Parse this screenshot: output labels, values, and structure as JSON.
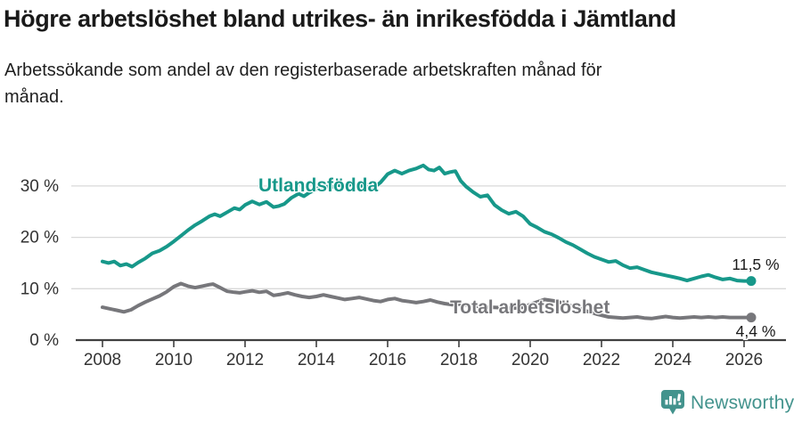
{
  "header": {
    "title": "Högre arbetslöshet bland utrikes- än inrikesfödda i Jämtland",
    "subtitle_line1": "Arbetssökande som andel av den registerbaserade arbetskraften månad för",
    "subtitle_line2": "månad."
  },
  "chart_data": {
    "type": "line",
    "title": "",
    "xlabel": "",
    "ylabel": "",
    "grid": "horizontal-only",
    "legend_position": "inline-labels",
    "xlim": [
      2007.25,
      2027.25
    ],
    "ylim": [
      0,
      36
    ],
    "x_ticks": [
      2008,
      2010,
      2012,
      2014,
      2016,
      2018,
      2020,
      2022,
      2024,
      2026
    ],
    "y_ticks": [
      {
        "value": 0,
        "label": "0 %"
      },
      {
        "value": 10,
        "label": "10 %"
      },
      {
        "value": 20,
        "label": "20 %"
      },
      {
        "value": 30,
        "label": "30 %"
      }
    ],
    "colors": {
      "utlandsfodda": "#17988a",
      "total": "#77777b",
      "gridline": "#d9d9d9",
      "axis": "#404040",
      "axis_text": "#333333",
      "value_label_text": "#1a1a1a"
    },
    "series": [
      {
        "name": "Utlandsfödda",
        "color": "#17988a",
        "end_label": "11,5 %",
        "end_value": 11.5,
        "points": [
          [
            2008.0,
            15.3
          ],
          [
            2008.17,
            15.0
          ],
          [
            2008.33,
            15.3
          ],
          [
            2008.5,
            14.5
          ],
          [
            2008.67,
            14.8
          ],
          [
            2008.83,
            14.3
          ],
          [
            2009.0,
            15.1
          ],
          [
            2009.2,
            15.9
          ],
          [
            2009.4,
            16.9
          ],
          [
            2009.6,
            17.4
          ],
          [
            2009.8,
            18.2
          ],
          [
            2010.0,
            19.2
          ],
          [
            2010.2,
            20.3
          ],
          [
            2010.4,
            21.4
          ],
          [
            2010.6,
            22.4
          ],
          [
            2010.8,
            23.2
          ],
          [
            2011.0,
            24.1
          ],
          [
            2011.15,
            24.5
          ],
          [
            2011.3,
            24.1
          ],
          [
            2011.5,
            24.9
          ],
          [
            2011.7,
            25.7
          ],
          [
            2011.85,
            25.4
          ],
          [
            2012.0,
            26.3
          ],
          [
            2012.2,
            27.0
          ],
          [
            2012.4,
            26.4
          ],
          [
            2012.6,
            26.9
          ],
          [
            2012.8,
            25.9
          ],
          [
            2012.95,
            26.1
          ],
          [
            2013.1,
            26.5
          ],
          [
            2013.3,
            27.7
          ],
          [
            2013.5,
            28.5
          ],
          [
            2013.65,
            28.0
          ],
          [
            2013.8,
            28.7
          ],
          [
            2014.0,
            29.4
          ],
          [
            2014.2,
            30.1
          ],
          [
            2014.4,
            29.7
          ],
          [
            2014.6,
            30.2
          ],
          [
            2014.8,
            29.9
          ],
          [
            2015.0,
            30.4
          ],
          [
            2015.2,
            29.9
          ],
          [
            2015.4,
            30.3
          ],
          [
            2015.6,
            29.6
          ],
          [
            2015.8,
            30.7
          ],
          [
            2016.0,
            32.3
          ],
          [
            2016.2,
            33.0
          ],
          [
            2016.4,
            32.4
          ],
          [
            2016.6,
            33.0
          ],
          [
            2016.8,
            33.4
          ],
          [
            2017.0,
            34.0
          ],
          [
            2017.15,
            33.2
          ],
          [
            2017.3,
            33.0
          ],
          [
            2017.45,
            33.6
          ],
          [
            2017.6,
            32.4
          ],
          [
            2017.75,
            32.7
          ],
          [
            2017.9,
            32.9
          ],
          [
            2018.05,
            31.0
          ],
          [
            2018.2,
            29.9
          ],
          [
            2018.4,
            28.8
          ],
          [
            2018.6,
            27.9
          ],
          [
            2018.8,
            28.2
          ],
          [
            2019.0,
            26.3
          ],
          [
            2019.2,
            25.3
          ],
          [
            2019.4,
            24.6
          ],
          [
            2019.6,
            25.0
          ],
          [
            2019.8,
            24.1
          ],
          [
            2020.0,
            22.6
          ],
          [
            2020.2,
            21.9
          ],
          [
            2020.4,
            21.1
          ],
          [
            2020.6,
            20.6
          ],
          [
            2020.8,
            19.9
          ],
          [
            2021.0,
            19.1
          ],
          [
            2021.2,
            18.5
          ],
          [
            2021.4,
            17.7
          ],
          [
            2021.6,
            16.9
          ],
          [
            2021.8,
            16.2
          ],
          [
            2022.0,
            15.7
          ],
          [
            2022.2,
            15.2
          ],
          [
            2022.4,
            15.4
          ],
          [
            2022.6,
            14.6
          ],
          [
            2022.8,
            14.0
          ],
          [
            2023.0,
            14.2
          ],
          [
            2023.2,
            13.7
          ],
          [
            2023.4,
            13.2
          ],
          [
            2023.6,
            12.9
          ],
          [
            2023.8,
            12.6
          ],
          [
            2024.0,
            12.3
          ],
          [
            2024.2,
            12.0
          ],
          [
            2024.4,
            11.6
          ],
          [
            2024.6,
            12.0
          ],
          [
            2024.8,
            12.4
          ],
          [
            2025.0,
            12.7
          ],
          [
            2025.2,
            12.2
          ],
          [
            2025.4,
            11.8
          ],
          [
            2025.6,
            12.0
          ],
          [
            2025.8,
            11.6
          ],
          [
            2026.0,
            11.5
          ],
          [
            2026.2,
            11.5
          ]
        ]
      },
      {
        "name": "Total arbetslöshet",
        "color": "#77777b",
        "end_label": "4,4 %",
        "end_value": 4.4,
        "points": [
          [
            2008.0,
            6.4
          ],
          [
            2008.2,
            6.1
          ],
          [
            2008.4,
            5.8
          ],
          [
            2008.6,
            5.5
          ],
          [
            2008.8,
            5.9
          ],
          [
            2009.0,
            6.7
          ],
          [
            2009.2,
            7.4
          ],
          [
            2009.4,
            8.0
          ],
          [
            2009.6,
            8.6
          ],
          [
            2009.8,
            9.4
          ],
          [
            2010.0,
            10.4
          ],
          [
            2010.2,
            11.0
          ],
          [
            2010.4,
            10.5
          ],
          [
            2010.6,
            10.2
          ],
          [
            2010.8,
            10.5
          ],
          [
            2011.0,
            10.8
          ],
          [
            2011.1,
            10.9
          ],
          [
            2011.3,
            10.2
          ],
          [
            2011.5,
            9.5
          ],
          [
            2011.7,
            9.3
          ],
          [
            2011.85,
            9.2
          ],
          [
            2012.0,
            9.4
          ],
          [
            2012.2,
            9.6
          ],
          [
            2012.4,
            9.3
          ],
          [
            2012.6,
            9.5
          ],
          [
            2012.8,
            8.7
          ],
          [
            2013.0,
            8.9
          ],
          [
            2013.2,
            9.2
          ],
          [
            2013.4,
            8.8
          ],
          [
            2013.6,
            8.5
          ],
          [
            2013.8,
            8.3
          ],
          [
            2014.0,
            8.5
          ],
          [
            2014.2,
            8.8
          ],
          [
            2014.4,
            8.5
          ],
          [
            2014.6,
            8.2
          ],
          [
            2014.8,
            7.9
          ],
          [
            2015.0,
            8.1
          ],
          [
            2015.2,
            8.3
          ],
          [
            2015.4,
            8.0
          ],
          [
            2015.6,
            7.7
          ],
          [
            2015.8,
            7.5
          ],
          [
            2016.0,
            7.9
          ],
          [
            2016.2,
            8.1
          ],
          [
            2016.4,
            7.7
          ],
          [
            2016.6,
            7.5
          ],
          [
            2016.8,
            7.3
          ],
          [
            2017.0,
            7.5
          ],
          [
            2017.2,
            7.8
          ],
          [
            2017.4,
            7.4
          ],
          [
            2017.6,
            7.1
          ],
          [
            2017.8,
            6.9
          ],
          [
            2018.0,
            7.0
          ],
          [
            2018.3,
            6.8
          ],
          [
            2018.6,
            6.5
          ],
          [
            2018.9,
            6.4
          ],
          [
            2019.2,
            6.3
          ],
          [
            2019.5,
            6.2
          ],
          [
            2019.8,
            6.4
          ],
          [
            2020.1,
            7.2
          ],
          [
            2020.4,
            7.9
          ],
          [
            2020.7,
            7.6
          ],
          [
            2021.0,
            7.0
          ],
          [
            2021.3,
            6.3
          ],
          [
            2021.6,
            5.6
          ],
          [
            2021.9,
            5.0
          ],
          [
            2022.2,
            4.5
          ],
          [
            2022.4,
            4.4
          ],
          [
            2022.6,
            4.3
          ],
          [
            2022.8,
            4.4
          ],
          [
            2023.0,
            4.5
          ],
          [
            2023.2,
            4.3
          ],
          [
            2023.4,
            4.2
          ],
          [
            2023.6,
            4.4
          ],
          [
            2023.8,
            4.6
          ],
          [
            2024.0,
            4.4
          ],
          [
            2024.2,
            4.3
          ],
          [
            2024.4,
            4.4
          ],
          [
            2024.6,
            4.5
          ],
          [
            2024.8,
            4.4
          ],
          [
            2025.0,
            4.5
          ],
          [
            2025.2,
            4.4
          ],
          [
            2025.4,
            4.5
          ],
          [
            2025.6,
            4.4
          ],
          [
            2025.8,
            4.4
          ],
          [
            2026.0,
            4.4
          ],
          [
            2026.2,
            4.4
          ]
        ]
      }
    ]
  },
  "footer": {
    "brand": "Newsworthy",
    "brand_color": "#43938d"
  }
}
